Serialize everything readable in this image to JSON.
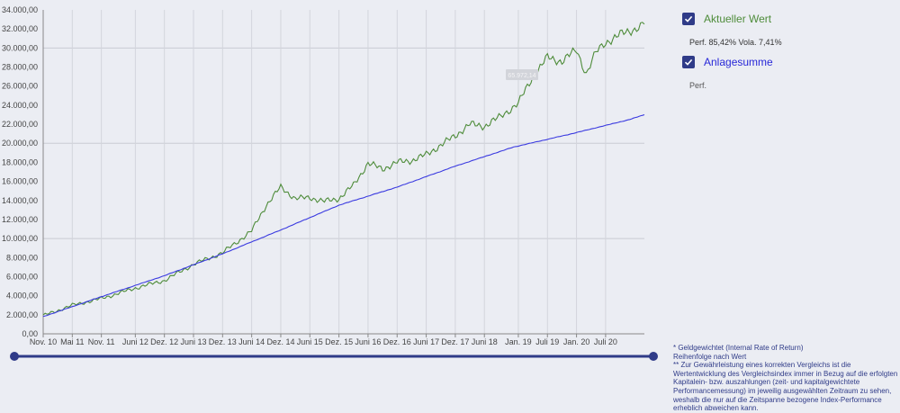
{
  "chart_data": {
    "type": "line",
    "ylim": [
      0,
      34000
    ],
    "y_ticks": [
      0,
      2000,
      4000,
      6000,
      8000,
      10000,
      12000,
      14000,
      16000,
      18000,
      20000,
      22000,
      24000,
      26000,
      28000,
      30000,
      32000,
      34000
    ],
    "y_tick_labels": [
      "0,00",
      "2.000,00",
      "4.000,00",
      "6.000,00",
      "8.000,00",
      "10.000,00",
      "12.000,00",
      "14.000,00",
      "16.000,00",
      "18.000,00",
      "20.000,00",
      "22.000,00",
      "24.000,00",
      "26.000,00",
      "28.000,00",
      "30.000,00",
      "32.000,00",
      "34.000,00"
    ],
    "x_range": [
      "2010-11",
      "2021-03"
    ],
    "x_ticks": [
      "2010-11",
      "2011-05",
      "2011-11",
      "2012-06",
      "2012-12",
      "2013-06",
      "2013-12",
      "2014-06",
      "2014-12",
      "2015-06",
      "2015-12",
      "2016-06",
      "2016-12",
      "2017-06",
      "2017-12",
      "2018-06",
      "2019-01",
      "2019-07",
      "2020-01",
      "2020-07"
    ],
    "x_tick_labels": [
      "Nov. 10",
      "Mai 11",
      "Nov. 11",
      "Juni 12",
      "Dez. 12",
      "Juni 13",
      "Dez. 13",
      "Juni 14",
      "Dez. 14",
      "Juni 15",
      "Dez. 15",
      "Juni 16",
      "Dez. 16",
      "Juni 17",
      "Dez. 17",
      "Juni 18",
      "Jan. 19",
      "Juli 19",
      "Jan. 20",
      "Juli 20"
    ],
    "grid_y_major": [
      0,
      10000,
      20000,
      30000
    ],
    "series": [
      {
        "name": "Aktueller Wert",
        "color": "#4e8c3a",
        "points": [
          [
            "2010-11",
            1900
          ],
          [
            "2011-05",
            3000
          ],
          [
            "2011-11",
            3700
          ],
          [
            "2012-06",
            4800
          ],
          [
            "2012-12",
            5600
          ],
          [
            "2013-06",
            7300
          ],
          [
            "2013-12",
            8500
          ],
          [
            "2014-06",
            10800
          ],
          [
            "2014-09",
            13500
          ],
          [
            "2014-12",
            15400
          ],
          [
            "2015-03",
            14200
          ],
          [
            "2015-06",
            14300
          ],
          [
            "2015-09",
            13900
          ],
          [
            "2015-12",
            14200
          ],
          [
            "2016-03",
            15600
          ],
          [
            "2016-06",
            17900
          ],
          [
            "2016-09",
            17300
          ],
          [
            "2016-12",
            18000
          ],
          [
            "2017-03",
            18200
          ],
          [
            "2017-06",
            18800
          ],
          [
            "2017-09",
            19800
          ],
          [
            "2017-12",
            20800
          ],
          [
            "2018-03",
            22000
          ],
          [
            "2018-06",
            21800
          ],
          [
            "2018-09",
            22700
          ],
          [
            "2019-01",
            24200
          ],
          [
            "2019-04",
            27000
          ],
          [
            "2019-07",
            29000
          ],
          [
            "2019-10",
            28600
          ],
          [
            "2020-01",
            29800
          ],
          [
            "2020-03",
            27300
          ],
          [
            "2020-05",
            29500
          ],
          [
            "2020-07",
            30600
          ],
          [
            "2020-10",
            31400
          ],
          [
            "2021-01",
            32000
          ],
          [
            "2021-03",
            32500
          ]
        ]
      },
      {
        "name": "Anlagesumme",
        "color": "#3b3be0",
        "points": [
          [
            "2010-11",
            1800
          ],
          [
            "2011-11",
            3900
          ],
          [
            "2012-12",
            6100
          ],
          [
            "2013-12",
            8400
          ],
          [
            "2014-12",
            10900
          ],
          [
            "2015-12",
            13500
          ],
          [
            "2016-12",
            15400
          ],
          [
            "2017-12",
            17600
          ],
          [
            "2018-12",
            19600
          ],
          [
            "2019-12",
            21000
          ],
          [
            "2020-12",
            22500
          ],
          [
            "2021-03",
            23000
          ]
        ]
      }
    ],
    "tooltip_text": "65.972,14"
  },
  "legend": [
    {
      "name": "Aktueller Wert",
      "color": "#4e8c3a",
      "stats": "Perf. 85,42% Vola. 7,41%"
    },
    {
      "name": "Anlagesumme",
      "color": "#2828d8",
      "stats": "Perf."
    }
  ],
  "notes": [
    "* Geldgewichtet (Internal Rate of Return)",
    "Reihenfolge nach Wert",
    "** Zur Gewährleistung eines korrekten Vergleichs ist die Wertentwicklung des Vergleichsindex immer in Bezug auf die erfolgten Kapitalein- bzw. auszahlungen (zeit- und kapitalgewichtete Performancemessung) im jeweilig ausgewählten Zeitraum zu sehen, weshalb die nur auf die Zeitspanne bezogene Index-Performance erheblich abweichen kann."
  ],
  "slider": {
    "color": "#2f3b88"
  }
}
